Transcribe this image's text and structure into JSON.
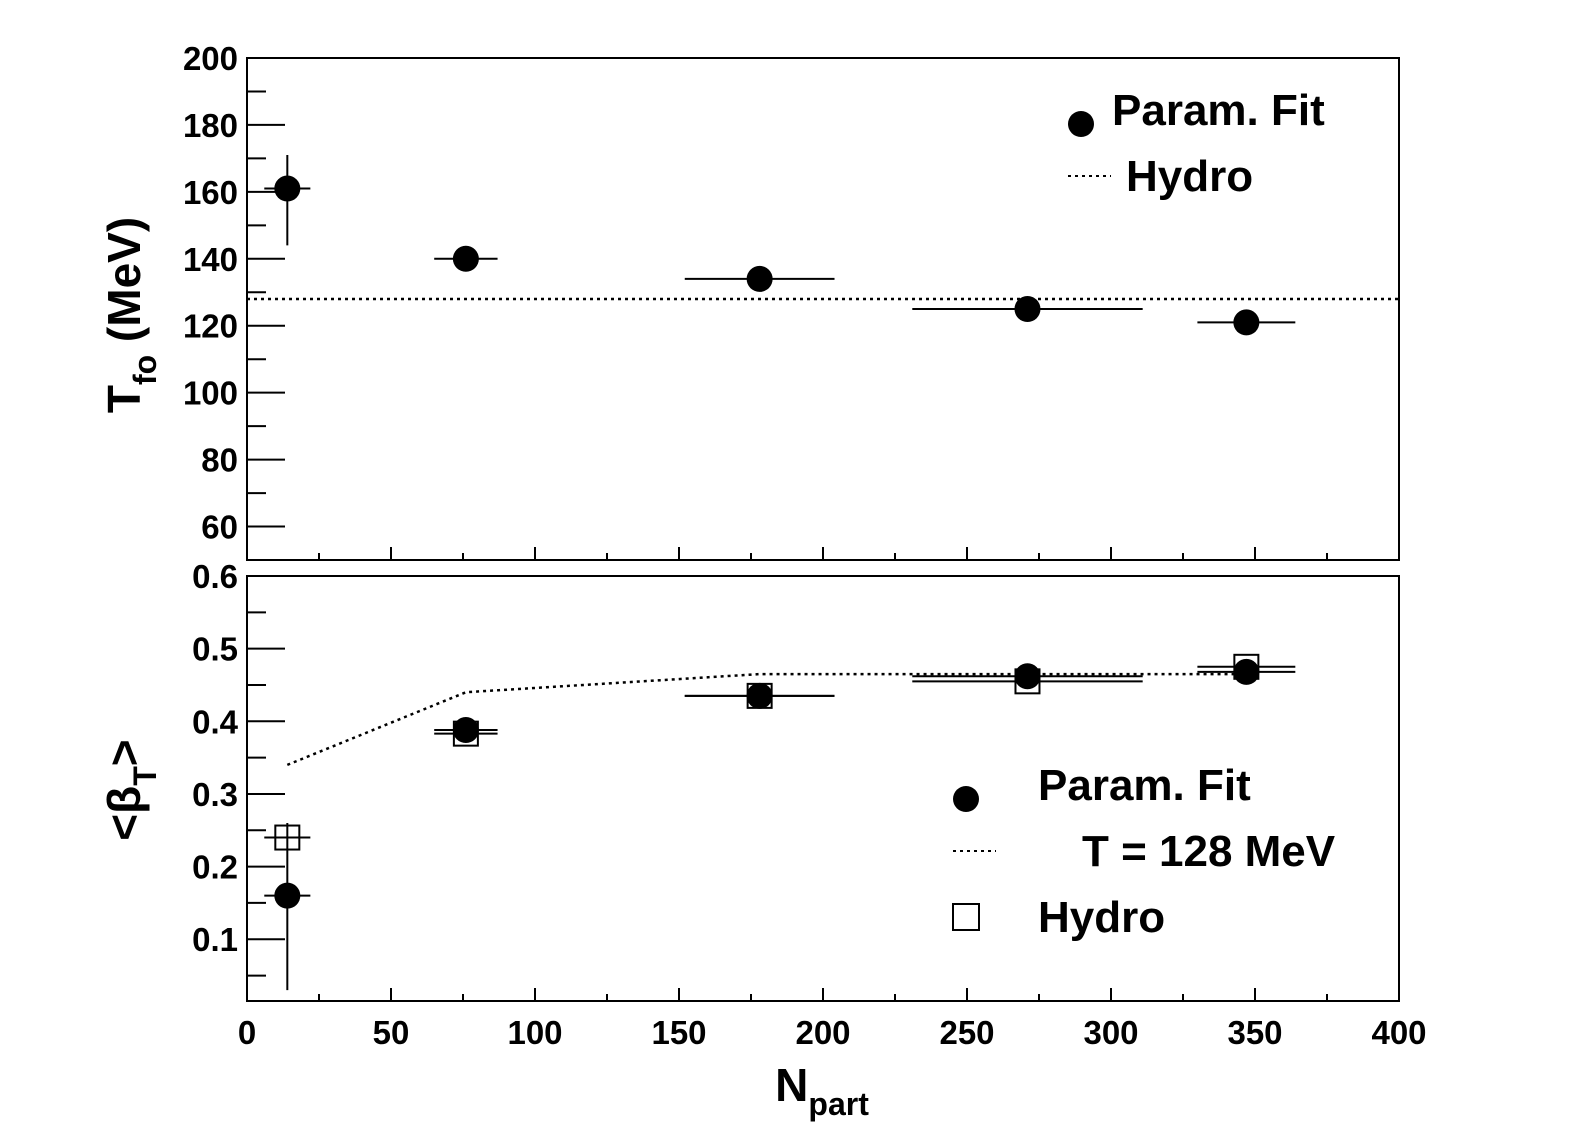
{
  "chart_data": [
    {
      "type": "scatter",
      "panel": "top",
      "title": "",
      "ylabel": "T",
      "ylabel_sub": "fo",
      "ylabel_unit": " (MeV)",
      "xlim": [
        0,
        400
      ],
      "ylim": [
        50,
        200
      ],
      "yticks": [
        60,
        80,
        100,
        120,
        140,
        160,
        180,
        200
      ],
      "grid": false,
      "legend_position": "top-right",
      "legend": [
        {
          "label": "Param. Fit",
          "marker": "filled-circle"
        },
        {
          "label": "Hydro",
          "marker": "dotted-line"
        }
      ],
      "series": [
        {
          "name": "Param. Fit",
          "marker": "filled-circle",
          "points": [
            {
              "x": 14,
              "y": 161,
              "xerr": [
                8,
                8
              ],
              "yerr": [
                17,
                10
              ]
            },
            {
              "x": 76,
              "y": 140,
              "xerr": [
                11,
                11
              ],
              "yerr": [
                0,
                0
              ]
            },
            {
              "x": 178,
              "y": 134,
              "xerr": [
                26,
                26
              ],
              "yerr": [
                0,
                0
              ]
            },
            {
              "x": 271,
              "y": 125,
              "xerr": [
                40,
                40
              ],
              "yerr": [
                0,
                0
              ]
            },
            {
              "x": 347,
              "y": 121,
              "xerr": [
                17,
                17
              ],
              "yerr": [
                0,
                0
              ]
            }
          ]
        },
        {
          "name": "Hydro",
          "style": "dotted-line",
          "points": [
            {
              "x": 0,
              "y": 128
            },
            {
              "x": 400,
              "y": 128
            }
          ]
        }
      ]
    },
    {
      "type": "scatter",
      "panel": "bottom",
      "title": "",
      "xlabel": "N",
      "xlabel_sub": "part",
      "ylabel_pre": "<β",
      "ylabel_sub": "T",
      "ylabel_post": ">",
      "xlim": [
        0,
        400
      ],
      "ylim": [
        0.015,
        0.6
      ],
      "xticks": [
        0,
        50,
        100,
        150,
        200,
        250,
        300,
        350,
        400
      ],
      "yticks": [
        0.1,
        0.2,
        0.3,
        0.4,
        0.5,
        0.6
      ],
      "ytick_labels": [
        "0.1",
        "0.2",
        "0.3",
        "0.4",
        "0.5",
        "0.6"
      ],
      "grid": false,
      "legend_position": "bottom-right",
      "legend": [
        {
          "label": "Param. Fit",
          "marker": "filled-circle"
        },
        {
          "label": "T = 128 MeV",
          "marker": "dotted-line"
        },
        {
          "label": "Hydro",
          "marker": "open-square"
        }
      ],
      "series": [
        {
          "name": "Param. Fit",
          "marker": "filled-circle",
          "points": [
            {
              "x": 14,
              "y": 0.16,
              "xerr": [
                8,
                8
              ],
              "yerr": [
                0.13,
                0.1
              ]
            },
            {
              "x": 76,
              "y": 0.388,
              "xerr": [
                11,
                11
              ],
              "yerr": [
                0,
                0
              ]
            },
            {
              "x": 178,
              "y": 0.435,
              "xerr": [
                26,
                26
              ],
              "yerr": [
                0,
                0
              ]
            },
            {
              "x": 271,
              "y": 0.462,
              "xerr": [
                40,
                40
              ],
              "yerr": [
                0,
                0
              ]
            },
            {
              "x": 347,
              "y": 0.468,
              "xerr": [
                17,
                17
              ],
              "yerr": [
                0,
                0
              ]
            }
          ]
        },
        {
          "name": "T = 128 MeV",
          "style": "dotted-line",
          "points": [
            {
              "x": 14,
              "y": 0.34
            },
            {
              "x": 76,
              "y": 0.44
            },
            {
              "x": 178,
              "y": 0.465
            },
            {
              "x": 271,
              "y": 0.465
            },
            {
              "x": 347,
              "y": 0.465
            }
          ]
        },
        {
          "name": "Hydro",
          "marker": "open-square",
          "points": [
            {
              "x": 14,
              "y": 0.24,
              "xerr": [
                8,
                8
              ]
            },
            {
              "x": 76,
              "y": 0.383,
              "xerr": [
                11,
                11
              ]
            },
            {
              "x": 178,
              "y": 0.435,
              "xerr": [
                26,
                26
              ]
            },
            {
              "x": 271,
              "y": 0.455,
              "xerr": [
                40,
                40
              ]
            },
            {
              "x": 347,
              "y": 0.475,
              "xerr": [
                17,
                17
              ]
            }
          ]
        }
      ]
    }
  ]
}
